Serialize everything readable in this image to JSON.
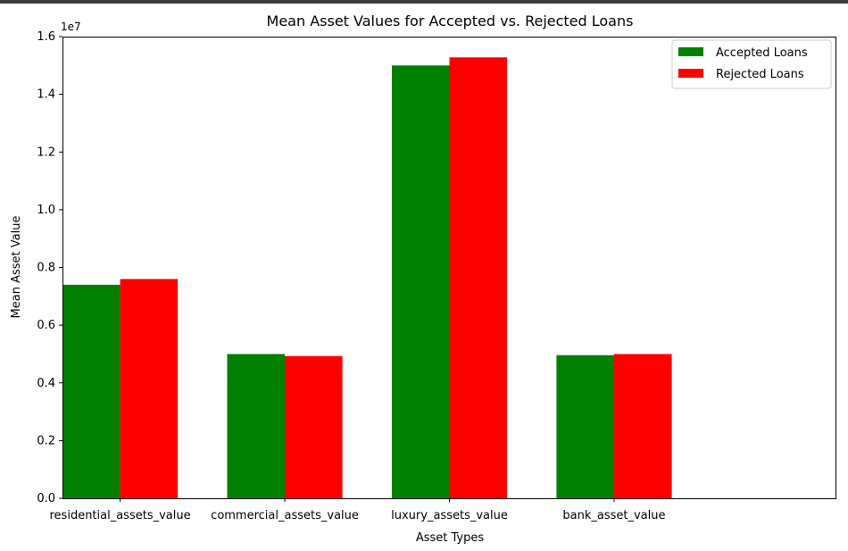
{
  "chart_data": {
    "type": "bar",
    "title": "Mean Asset Values for Accepted vs. Rejected Loans",
    "xlabel": "Asset Types",
    "ylabel": "Mean Asset Value",
    "y_offset_label": "1e7",
    "y_scale": 10000000,
    "ylim": [
      0,
      16000000
    ],
    "y_ticks": [
      0,
      2000000,
      4000000,
      6000000,
      8000000,
      10000000,
      12000000,
      14000000,
      16000000
    ],
    "y_tick_labels": [
      "0.0",
      "0.2",
      "0.4",
      "0.6",
      "0.8",
      "1.0",
      "1.2",
      "1.4",
      "1.6"
    ],
    "categories": [
      "residential_assets_value",
      "commercial_assets_value",
      "luxury_assets_value",
      "bank_asset_value"
    ],
    "series": [
      {
        "name": "Accepted Loans",
        "color": "#008000",
        "values": [
          7400000,
          5000000,
          15000000,
          4960000
        ]
      },
      {
        "name": "Rejected Loans",
        "color": "#ff0000",
        "values": [
          7600000,
          4930000,
          15280000,
          5000000
        ]
      }
    ],
    "grid": false,
    "legend": "top-right"
  }
}
